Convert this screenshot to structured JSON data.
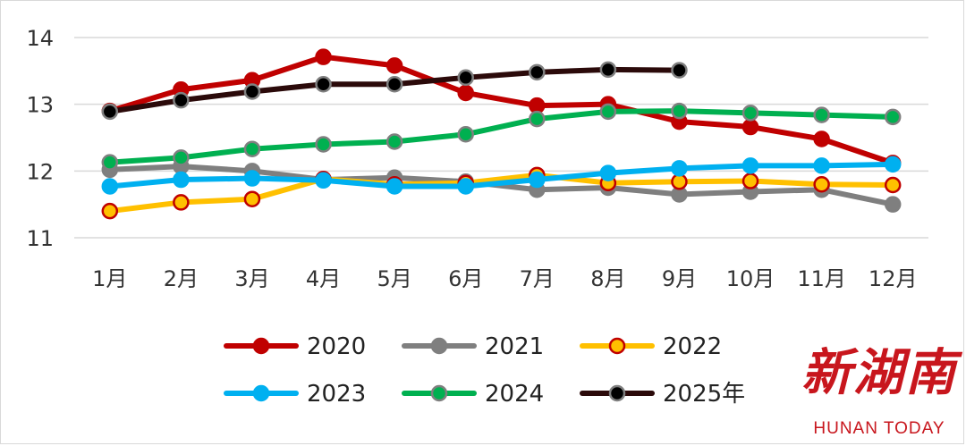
{
  "chart_data": {
    "type": "line",
    "categories": [
      "1月",
      "2月",
      "3月",
      "4月",
      "5月",
      "6月",
      "7月",
      "8月",
      "9月",
      "10月",
      "11月",
      "12月"
    ],
    "ylim": [
      11,
      14
    ],
    "yticks": [
      "11",
      "12",
      "13",
      "14"
    ],
    "grid": true,
    "legend_position": "bottom",
    "series": [
      {
        "name": "2020",
        "color": "#c00000",
        "marker_fill": "#c00000",
        "marker_stroke": "#c00000",
        "values": [
          12.9,
          13.22,
          13.36,
          13.71,
          13.58,
          13.17,
          12.98,
          13.0,
          12.74,
          12.66,
          12.48,
          12.12
        ]
      },
      {
        "name": "2021",
        "color": "#7f7f7f",
        "marker_fill": "#7f7f7f",
        "marker_stroke": "#7f7f7f",
        "values": [
          12.02,
          12.07,
          12.0,
          11.87,
          11.9,
          11.84,
          11.72,
          11.75,
          11.65,
          11.69,
          11.72,
          11.5
        ]
      },
      {
        "name": "2022",
        "color": "#ffc000",
        "marker_fill": "#ffc000",
        "marker_stroke": "#c00000",
        "values": [
          11.4,
          11.53,
          11.58,
          11.88,
          11.8,
          11.82,
          11.94,
          11.82,
          11.84,
          11.85,
          11.8,
          11.79
        ]
      },
      {
        "name": "2023",
        "color": "#00b0f0",
        "marker_fill": "#00b0f0",
        "marker_stroke": "#00b0f0",
        "values": [
          11.77,
          11.87,
          11.89,
          11.86,
          11.77,
          11.77,
          11.87,
          11.97,
          12.04,
          12.08,
          12.08,
          12.1
        ]
      },
      {
        "name": "2024",
        "color": "#00b050",
        "marker_fill": "#00b050",
        "marker_stroke": "#7f7f7f",
        "values": [
          12.13,
          12.2,
          12.33,
          12.4,
          12.44,
          12.55,
          12.78,
          12.89,
          12.9,
          12.87,
          12.84,
          12.81
        ]
      },
      {
        "name": "2025年",
        "color": "#2b0a0a",
        "marker_fill": "#000000",
        "marker_stroke": "#7f7f7f",
        "values": [
          12.89,
          13.06,
          13.19,
          13.3,
          13.3,
          13.4,
          13.48,
          13.52,
          13.51,
          null,
          null,
          null
        ]
      }
    ]
  },
  "watermark": {
    "cn": "新湖南",
    "en": "HUNAN TODAY",
    "color": "#c8161d"
  }
}
